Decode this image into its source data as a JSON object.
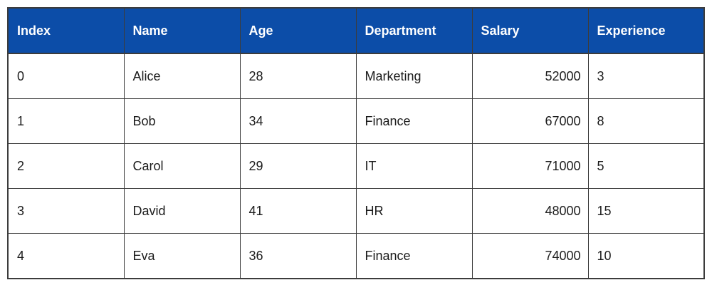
{
  "colors": {
    "header_bg": "#0c4da8",
    "header_text": "#ffffff",
    "border": "#3c3c3c",
    "cell_text": "#1b1b1b"
  },
  "table": {
    "columns": [
      {
        "label": "Index",
        "align": "left"
      },
      {
        "label": "Name",
        "align": "left"
      },
      {
        "label": "Age",
        "align": "left"
      },
      {
        "label": "Department",
        "align": "left"
      },
      {
        "label": "Salary",
        "align": "right"
      },
      {
        "label": "Experience",
        "align": "left"
      }
    ],
    "rows": [
      [
        "0",
        "Alice",
        "28",
        "Marketing",
        "52000",
        "3"
      ],
      [
        "1",
        "Bob",
        "34",
        "Finance",
        "67000",
        "8"
      ],
      [
        "2",
        "Carol",
        "29",
        "IT",
        "71000",
        "5"
      ],
      [
        "3",
        "David",
        "41",
        "HR",
        "48000",
        "15"
      ],
      [
        "4",
        "Eva",
        "36",
        "Finance",
        "74000",
        "10"
      ]
    ]
  }
}
